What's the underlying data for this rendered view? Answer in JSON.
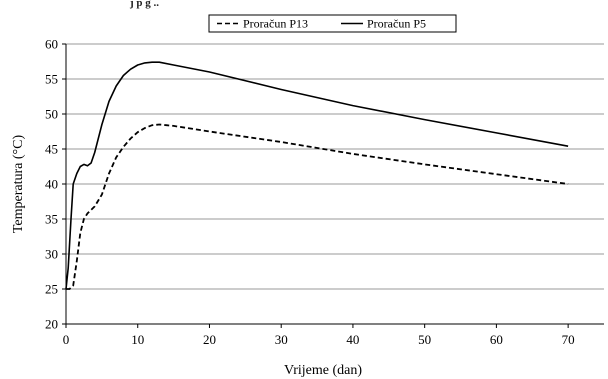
{
  "caption_fragment": "j p g   ..",
  "chart_data": {
    "type": "line",
    "title": "",
    "xlabel": "Vrijeme (dan)",
    "ylabel": "Temperatura (°C)",
    "xlim": [
      0,
      75
    ],
    "ylim": [
      20,
      60
    ],
    "xticks": [
      0,
      10,
      20,
      30,
      40,
      50,
      60,
      70
    ],
    "yticks": [
      20,
      25,
      30,
      35,
      40,
      45,
      50,
      55,
      60
    ],
    "grid": "horizontal",
    "legend_position": "top-center",
    "series": [
      {
        "name": "Proračun P13",
        "style": "dashed",
        "color": "#000000",
        "points": [
          [
            0,
            25
          ],
          [
            0.5,
            25
          ],
          [
            1,
            25.5
          ],
          [
            1.5,
            29
          ],
          [
            2,
            33
          ],
          [
            2.5,
            35
          ],
          [
            3,
            35.8
          ],
          [
            4,
            36.8
          ],
          [
            5,
            38.5
          ],
          [
            6,
            41.5
          ],
          [
            7,
            43.8
          ],
          [
            8,
            45.3
          ],
          [
            9,
            46.5
          ],
          [
            10,
            47.4
          ],
          [
            11,
            48
          ],
          [
            12,
            48.4
          ],
          [
            13,
            48.5
          ],
          [
            14,
            48.4
          ],
          [
            15,
            48.3
          ],
          [
            20,
            47.5
          ],
          [
            30,
            46
          ],
          [
            40,
            44.3
          ],
          [
            50,
            42.8
          ],
          [
            60,
            41.4
          ],
          [
            70,
            40
          ]
        ]
      },
      {
        "name": "Proračun P5",
        "style": "solid",
        "color": "#000000",
        "points": [
          [
            0,
            25
          ],
          [
            0.3,
            28
          ],
          [
            0.7,
            35
          ],
          [
            1,
            40
          ],
          [
            1.5,
            41.5
          ],
          [
            2,
            42.5
          ],
          [
            2.5,
            42.8
          ],
          [
            3,
            42.6
          ],
          [
            3.5,
            43
          ],
          [
            4,
            44.5
          ],
          [
            5,
            48.5
          ],
          [
            6,
            51.8
          ],
          [
            7,
            54
          ],
          [
            8,
            55.5
          ],
          [
            9,
            56.4
          ],
          [
            10,
            57
          ],
          [
            11,
            57.3
          ],
          [
            12,
            57.4
          ],
          [
            13,
            57.4
          ],
          [
            15,
            57
          ],
          [
            20,
            56
          ],
          [
            30,
            53.5
          ],
          [
            40,
            51.2
          ],
          [
            50,
            49.2
          ],
          [
            60,
            47.3
          ],
          [
            70,
            45.4
          ]
        ]
      }
    ]
  }
}
